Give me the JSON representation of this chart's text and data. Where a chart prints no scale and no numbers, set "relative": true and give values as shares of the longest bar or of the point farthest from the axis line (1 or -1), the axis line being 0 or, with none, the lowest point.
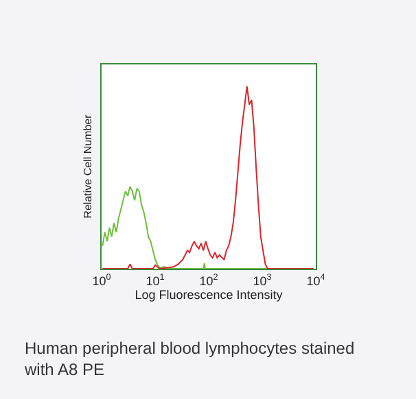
{
  "chart_data": {
    "type": "line",
    "relative": true,
    "log": "x",
    "legend": false,
    "marker": "none",
    "line_style": "solid",
    "xlabel": "Log Fluorescence Intensity",
    "ylabel": "Relative Cell Number",
    "xlim": [
      1,
      10000
    ],
    "xticks": [
      {
        "value": 1,
        "label": "10$^{0}$"
      },
      {
        "value": 10,
        "label": "10$^{1}$"
      },
      {
        "value": 100,
        "label": "10$^{2}$"
      },
      {
        "value": 1000,
        "label": "10$^{3}$"
      },
      {
        "value": 10000,
        "label": "10$^{4}$"
      }
    ],
    "annotations": [
      "Human peripheral blood lymphocytes stained with A8 PE"
    ],
    "series": [
      {
        "color": "#6cbf3c",
        "x": [
          1.04,
          1.15,
          1.27,
          1.4,
          1.54,
          1.7,
          1.88,
          2.07,
          2.29,
          2.53,
          2.79,
          3.08,
          3.4,
          3.75,
          4.14,
          4.57,
          5.04,
          5.56,
          6.14,
          6.78,
          7.48,
          8.24,
          9.1,
          10.05,
          11.1,
          12.2,
          14.9,
          18.2,
          26.9,
          80,
          83,
          86,
          9000
        ],
        "values": [
          0.125,
          0.2,
          0.15,
          0.225,
          0.175,
          0.25,
          0.2,
          0.275,
          0.325,
          0.375,
          0.425,
          0.4,
          0.45,
          0.425,
          0.375,
          0.44,
          0.425,
          0.35,
          0.31,
          0.25,
          0.175,
          0.15,
          0.1,
          0.05,
          0.02,
          0.005,
          0.01,
          0,
          0,
          0,
          0.03,
          0,
          0
        ]
      },
      {
        "color": "#d8262c",
        "x": [
          1.04,
          3.08,
          3.4,
          3.75,
          9.1,
          10.05,
          12.2,
          22.1,
          26.9,
          32.8,
          36.2,
          40.0,
          44.1,
          48.7,
          53.7,
          59.3,
          65.5,
          72.3,
          79.7,
          88.0,
          97.1,
          107,
          118,
          131,
          144,
          159,
          194,
          214,
          236,
          260,
          287,
          317,
          350,
          386,
          426,
          470,
          519,
          573,
          632,
          698,
          771,
          849,
          938,
          1035,
          1143,
          1262,
          9000
        ],
        "values": [
          0,
          0,
          0.025,
          0,
          0,
          0.02,
          0,
          0.01,
          0.025,
          0.05,
          0.075,
          0.1,
          0.09,
          0.125,
          0.15,
          0.125,
          0.11,
          0.14,
          0.1,
          0.15,
          0.11,
          0.075,
          0.06,
          0.09,
          0.06,
          0.075,
          0.05,
          0.1,
          0.125,
          0.175,
          0.25,
          0.375,
          0.525,
          0.675,
          0.8,
          0.9,
          1,
          0.9,
          0.925,
          0.775,
          0.55,
          0.35,
          0.175,
          0.1,
          0.025,
          0,
          0
        ]
      }
    ]
  }
}
